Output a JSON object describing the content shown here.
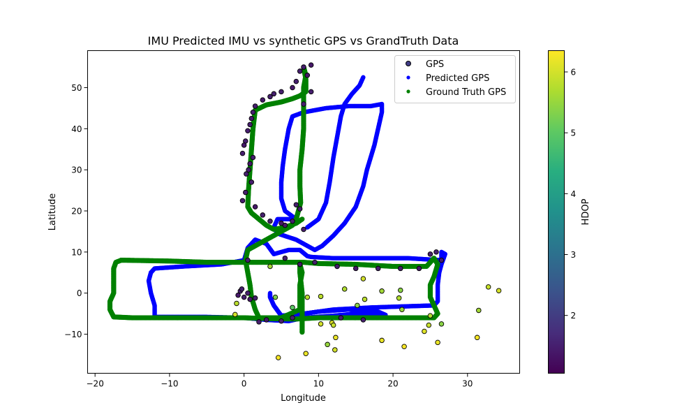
{
  "chart_data": {
    "type": "scatter",
    "title": "IMU Predicted IMU vs synthetic GPS vs GrandTruth Data",
    "xlabel": "Longitude",
    "ylabel": "Latitude",
    "xlim": [
      -21,
      37
    ],
    "ylim": [
      -19.5,
      59
    ],
    "xticks": [
      -20,
      -10,
      0,
      10,
      20,
      30
    ],
    "yticks": [
      -10,
      0,
      10,
      20,
      30,
      40,
      50
    ],
    "grid": false,
    "legend_position": "top-right",
    "colorbar": {
      "label": "HDOP",
      "range": [
        1.05,
        6.35
      ],
      "ticks": [
        2,
        3,
        4,
        5,
        6
      ],
      "colormap": "viridis"
    },
    "series": [
      {
        "name": "GPS",
        "kind": "scatter",
        "color_by": "HDOP",
        "points": [
          [
            8.0,
            55.0,
            1.5
          ],
          [
            9.0,
            55.5,
            1.4
          ],
          [
            7.5,
            54.0,
            1.5
          ],
          [
            8.5,
            53.0,
            1.4
          ],
          [
            7.0,
            51.5,
            1.5
          ],
          [
            6.5,
            50.0,
            1.4
          ],
          [
            9.0,
            49.0,
            1.5
          ],
          [
            5.0,
            49.0,
            1.5
          ],
          [
            4.0,
            48.5,
            1.5
          ],
          [
            3.5,
            47.8,
            1.5
          ],
          [
            2.5,
            47.0,
            1.4
          ],
          [
            1.5,
            45.5,
            1.5
          ],
          [
            8.0,
            46.0,
            1.5
          ],
          [
            1.2,
            44.0,
            1.5
          ],
          [
            1.0,
            42.5,
            1.4
          ],
          [
            0.8,
            41.0,
            1.5
          ],
          [
            0.5,
            39.5,
            1.5
          ],
          [
            0.2,
            37.0,
            1.5
          ],
          [
            0.0,
            36.0,
            1.4
          ],
          [
            -0.2,
            34.0,
            1.5
          ],
          [
            1.2,
            33.0,
            1.5
          ],
          [
            0.8,
            31.5,
            1.4
          ],
          [
            0.6,
            30.0,
            1.5
          ],
          [
            0.3,
            29.0,
            1.5
          ],
          [
            1.0,
            27.0,
            1.5
          ],
          [
            0.2,
            24.5,
            1.5
          ],
          [
            -0.2,
            22.5,
            1.5
          ],
          [
            1.5,
            21.0,
            1.4
          ],
          [
            2.5,
            19.0,
            1.5
          ],
          [
            3.5,
            17.5,
            1.5
          ],
          [
            5.5,
            16.5,
            1.4
          ],
          [
            6.5,
            17.5,
            1.5
          ],
          [
            7.5,
            20.5,
            1.5
          ],
          [
            5.0,
            17.0,
            1.4
          ],
          [
            7.0,
            21.5,
            1.5
          ],
          [
            8.0,
            15.5,
            1.5
          ],
          [
            0.5,
            8.0,
            1.5
          ],
          [
            5.5,
            8.5,
            1.5
          ],
          [
            7.5,
            7.0,
            1.4
          ],
          [
            9.5,
            7.5,
            1.5
          ],
          [
            12.5,
            6.5,
            1.5
          ],
          [
            15.0,
            6.0,
            1.4
          ],
          [
            18.0,
            6.0,
            1.5
          ],
          [
            21.0,
            6.0,
            1.5
          ],
          [
            23.5,
            6.0,
            1.4
          ],
          [
            25.0,
            9.5,
            1.5
          ],
          [
            25.8,
            10.0,
            1.5
          ],
          [
            26.5,
            8.0,
            1.5
          ],
          [
            -0.5,
            0.5,
            1.5
          ],
          [
            -0.8,
            -0.5,
            1.4
          ],
          [
            0.0,
            -1.0,
            1.5
          ],
          [
            0.5,
            0.0,
            1.5
          ],
          [
            -0.3,
            1.0,
            1.5
          ],
          [
            0.8,
            -1.5,
            1.4
          ],
          [
            1.5,
            -1.2,
            1.5
          ],
          [
            2.0,
            -7.0,
            1.5
          ],
          [
            3.0,
            -6.5,
            1.4
          ],
          [
            5.0,
            -6.8,
            1.5
          ],
          [
            6.5,
            -6.0,
            1.5
          ],
          [
            16.0,
            -6.5,
            1.5
          ],
          [
            13.0,
            -6.0,
            1.4
          ],
          [
            -1.0,
            -2.5,
            5.8
          ],
          [
            -1.2,
            -5.2,
            6.0
          ],
          [
            3.5,
            6.5,
            5.6
          ],
          [
            4.2,
            -1.0,
            5.3
          ],
          [
            6.5,
            -3.5,
            5.0
          ],
          [
            10.3,
            -0.8,
            5.8
          ],
          [
            10.3,
            -7.5,
            6.0
          ],
          [
            11.8,
            -7.2,
            6.1
          ],
          [
            12.0,
            -7.8,
            5.9
          ],
          [
            12.3,
            -10.8,
            6.2
          ],
          [
            11.2,
            -12.5,
            5.5
          ],
          [
            12.2,
            -13.8,
            6.0
          ],
          [
            13.5,
            1.0,
            5.7
          ],
          [
            15.2,
            -3.0,
            5.4
          ],
          [
            16.2,
            -1.5,
            5.8
          ],
          [
            16.0,
            3.5,
            6.0
          ],
          [
            18.5,
            0.5,
            5.6
          ],
          [
            18.5,
            -11.5,
            6.2
          ],
          [
            20.8,
            -1.2,
            5.7
          ],
          [
            21.2,
            -4.0,
            5.5
          ],
          [
            21.0,
            0.7,
            5.4
          ],
          [
            21.5,
            -13.0,
            6.3
          ],
          [
            24.2,
            -9.3,
            6.1
          ],
          [
            24.8,
            -7.8,
            5.9
          ],
          [
            25.0,
            -5.5,
            5.7
          ],
          [
            26.0,
            -12.0,
            6.2
          ],
          [
            26.5,
            -7.5,
            5.4
          ],
          [
            31.3,
            -10.8,
            6.3
          ],
          [
            31.5,
            -4.2,
            5.6
          ],
          [
            32.8,
            1.5,
            5.9
          ],
          [
            34.2,
            0.6,
            6.0
          ],
          [
            4.6,
            -15.7,
            6.3
          ],
          [
            8.3,
            -14.7,
            6.2
          ],
          [
            8.5,
            -1.0,
            5.8
          ]
        ]
      },
      {
        "name": "Predicted GPS",
        "kind": "path",
        "color": "#0000ff",
        "points": [
          [
            -12.5,
            5.0
          ],
          [
            -12.8,
            3.0
          ],
          [
            -12.5,
            0.0
          ],
          [
            -12.0,
            -3.0
          ],
          [
            -12.0,
            -5.8
          ],
          [
            -5.0,
            -5.8
          ],
          [
            0.0,
            -6.0
          ],
          [
            3.0,
            -6.5
          ],
          [
            6.0,
            -6.8
          ],
          [
            8.0,
            -6.0
          ],
          [
            12.0,
            -5.5
          ],
          [
            15.0,
            -5.0
          ],
          [
            18.0,
            -5.0
          ],
          [
            19.0,
            -5.3
          ],
          [
            18.0,
            -4.5
          ],
          [
            14.0,
            -4.0
          ],
          [
            10.0,
            -4.5
          ],
          [
            8.0,
            -5.0
          ],
          [
            5.0,
            -5.5
          ],
          [
            4.0,
            -3.0
          ],
          [
            3.5,
            -1.0
          ],
          [
            3.5,
            0.0
          ],
          [
            3.5,
            -1.0
          ],
          [
            4.0,
            -3.0
          ],
          [
            5.0,
            -5.5
          ],
          [
            8.0,
            -5.0
          ],
          [
            12.0,
            -4.0
          ],
          [
            17.0,
            -3.5
          ],
          [
            22.0,
            -3.2
          ],
          [
            25.5,
            -3.0
          ],
          [
            26.0,
            -2.0
          ],
          [
            26.0,
            2.0
          ],
          [
            26.2,
            5.0
          ],
          [
            26.5,
            7.0
          ],
          [
            27.0,
            9.5
          ],
          [
            26.5,
            10.0
          ],
          [
            26.5,
            8.0
          ],
          [
            22.0,
            8.5
          ],
          [
            17.0,
            8.5
          ],
          [
            12.0,
            8.5
          ],
          [
            9.0,
            8.8
          ],
          [
            8.5,
            9.0
          ],
          [
            7.5,
            10.5
          ],
          [
            6.0,
            10.5
          ],
          [
            4.0,
            9.5
          ],
          [
            3.0,
            12.0
          ],
          [
            1.5,
            13.0
          ],
          [
            0.5,
            11.0
          ],
          [
            0.0,
            8.0
          ],
          [
            -3.0,
            7.0
          ],
          [
            -8.0,
            6.5
          ],
          [
            -12.0,
            6.0
          ],
          [
            -12.5,
            5.0
          ],
          [
            null,
            null
          ],
          [
            7.0,
            18.0
          ],
          [
            5.5,
            20.0
          ],
          [
            5.0,
            23.0
          ],
          [
            5.0,
            27.0
          ],
          [
            5.2,
            31.0
          ],
          [
            5.5,
            35.0
          ],
          [
            6.0,
            40.0
          ],
          [
            6.5,
            43.0
          ],
          [
            8.0,
            44.0
          ],
          [
            11.0,
            45.0
          ],
          [
            14.0,
            45.5
          ],
          [
            17.0,
            45.5
          ],
          [
            18.5,
            46.0
          ],
          [
            18.5,
            44.0
          ],
          [
            18.0,
            40.0
          ],
          [
            17.5,
            36.0
          ],
          [
            17.0,
            33.0
          ],
          [
            16.5,
            30.0
          ],
          [
            16.0,
            26.0
          ],
          [
            15.0,
            21.0
          ],
          [
            13.5,
            17.0
          ],
          [
            12.0,
            14.0
          ],
          [
            10.5,
            11.5
          ],
          [
            9.5,
            10.5
          ],
          [
            8.5,
            11.5
          ],
          [
            7.0,
            13.0
          ],
          [
            4.5,
            14.5
          ],
          [
            4.0,
            16.0
          ],
          [
            4.5,
            18.0
          ],
          [
            7.0,
            18.0
          ],
          [
            null,
            null
          ],
          [
            8.5,
            16.0
          ],
          [
            10.0,
            18.0
          ],
          [
            11.0,
            22.0
          ],
          [
            11.5,
            27.0
          ],
          [
            12.0,
            33.0
          ],
          [
            12.5,
            38.0
          ],
          [
            13.0,
            43.0
          ],
          [
            13.5,
            46.0
          ],
          [
            14.5,
            48.5
          ],
          [
            15.5,
            50.5
          ],
          [
            16.0,
            52.5
          ]
        ]
      },
      {
        "name": "Ground Truth GPS",
        "kind": "path",
        "color": "#008000",
        "points": [
          [
            -16.5,
            8.0
          ],
          [
            -17.2,
            7.5
          ],
          [
            -17.5,
            6.0
          ],
          [
            -17.5,
            3.0
          ],
          [
            -17.5,
            0.0
          ],
          [
            -18.0,
            -2.0
          ],
          [
            -18.0,
            -4.0
          ],
          [
            -17.5,
            -5.8
          ],
          [
            -15.0,
            -6.0
          ],
          [
            -10.0,
            -6.0
          ],
          [
            -5.0,
            -6.0
          ],
          [
            0.0,
            -6.0
          ],
          [
            3.0,
            -6.2
          ],
          [
            7.0,
            -6.3
          ],
          [
            10.0,
            -6.0
          ],
          [
            15.0,
            -6.0
          ],
          [
            20.0,
            -6.0
          ],
          [
            25.5,
            -6.0
          ],
          [
            26.0,
            -5.0
          ],
          [
            25.5,
            -3.0
          ],
          [
            25.0,
            -1.0
          ],
          [
            25.0,
            2.0
          ],
          [
            25.5,
            4.0
          ],
          [
            26.0,
            7.0
          ],
          [
            25.5,
            8.5
          ],
          [
            24.5,
            6.5
          ],
          [
            20.0,
            6.5
          ],
          [
            15.0,
            7.0
          ],
          [
            10.0,
            7.2
          ],
          [
            8.0,
            7.5
          ],
          [
            5.0,
            7.5
          ],
          [
            0.0,
            7.5
          ],
          [
            -5.0,
            7.5
          ],
          [
            -10.0,
            7.8
          ],
          [
            -16.0,
            8.0
          ],
          [
            -16.5,
            8.0
          ],
          [
            null,
            null
          ],
          [
            8.0,
            55.0
          ],
          [
            8.3,
            53.0
          ],
          [
            8.0,
            50.0
          ],
          [
            8.0,
            45.0
          ],
          [
            8.0,
            40.0
          ],
          [
            7.8,
            35.0
          ],
          [
            7.5,
            30.0
          ],
          [
            7.5,
            26.0
          ],
          [
            7.6,
            22.0
          ],
          [
            7.0,
            18.0
          ],
          [
            6.5,
            16.5
          ],
          [
            5.0,
            15.0
          ],
          [
            3.5,
            13.5
          ],
          [
            2.0,
            12.0
          ],
          [
            0.5,
            10.5
          ],
          [
            0.2,
            8.0
          ],
          [
            0.5,
            5.0
          ],
          [
            0.8,
            2.0
          ],
          [
            1.0,
            -1.0
          ],
          [
            1.5,
            -4.0
          ],
          [
            2.0,
            -6.0
          ],
          [
            5.0,
            -6.0
          ],
          [
            7.5,
            -4.0
          ],
          [
            7.5,
            -1.0
          ],
          [
            7.5,
            2.0
          ],
          [
            7.8,
            5.0
          ],
          [
            7.5,
            7.0
          ],
          [
            7.5,
            5.0
          ],
          [
            7.8,
            0.0
          ],
          [
            7.8,
            -3.0
          ],
          [
            7.8,
            -6.0
          ],
          [
            7.8,
            -9.5
          ],
          [
            null,
            null
          ],
          [
            7.8,
            18.0
          ],
          [
            7.0,
            17.0
          ],
          [
            5.5,
            16.0
          ],
          [
            4.0,
            15.5
          ],
          [
            3.0,
            16.5
          ],
          [
            2.0,
            18.0
          ],
          [
            1.0,
            19.5
          ],
          [
            0.5,
            21.0
          ],
          [
            0.6,
            25.0
          ],
          [
            0.8,
            30.0
          ],
          [
            1.0,
            35.0
          ],
          [
            1.2,
            40.0
          ],
          [
            1.5,
            44.5
          ],
          [
            3.0,
            45.8
          ],
          [
            5.0,
            46.5
          ],
          [
            6.5,
            47.3
          ],
          [
            7.5,
            48.0
          ],
          [
            8.3,
            49.0
          ],
          [
            8.3,
            52.0
          ],
          [
            8.0,
            55.0
          ]
        ]
      }
    ]
  }
}
